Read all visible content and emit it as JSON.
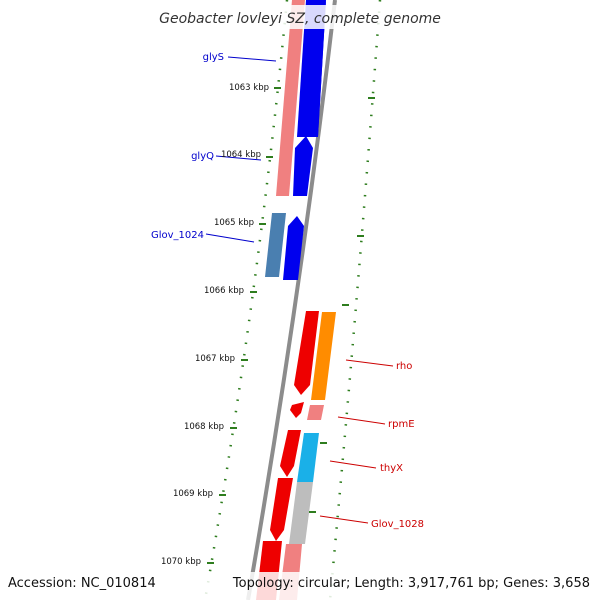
{
  "title": "Geobacter lovleyi SZ, complete genome",
  "footer": {
    "accession": "Accession: NC_010814",
    "summary": "Topology: circular; Length: 3,917,761 bp; Genes: 3,658"
  },
  "kbp_ticks": [
    "1063 kbp",
    "1064 kbp",
    "1065 kbp",
    "1066 kbp",
    "1067 kbp",
    "1068 kbp",
    "1069 kbp",
    "1070 kbp"
  ],
  "genes": [
    {
      "name": "glyS",
      "strand": "forward",
      "color": "#0000cc"
    },
    {
      "name": "glyQ",
      "strand": "forward",
      "color": "#0000cc"
    },
    {
      "name": "Glov_1024",
      "strand": "forward",
      "color": "#0000cc"
    },
    {
      "name": "rho",
      "strand": "reverse",
      "color": "#cc0000"
    },
    {
      "name": "rpmE",
      "strand": "reverse",
      "color": "#cc0000"
    },
    {
      "name": "thyX",
      "strand": "reverse",
      "color": "#cc0000"
    },
    {
      "name": "Glov_1028",
      "strand": "reverse",
      "color": "#cc0000"
    }
  ],
  "colors": {
    "forward_feature": "#0000ee",
    "reverse_feature": "#ee0000",
    "cog_salmon": "#f08080",
    "cog_steelblue": "#4a7fb0",
    "cog_orange": "#ff8c00",
    "cog_cyan": "#1ab0e8",
    "cog_gray": "#bdbdbd",
    "backbone": "#8c8c8c",
    "tick_green": "#2e7d1e"
  }
}
